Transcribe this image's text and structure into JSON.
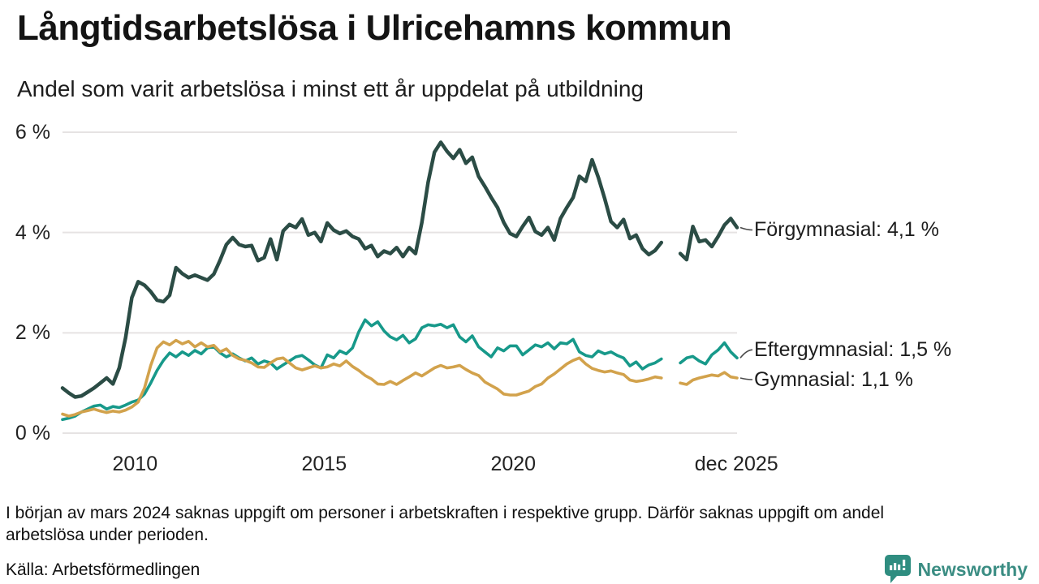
{
  "header": {
    "title": "Långtidsarbetslösa i Ulricehamns kommun",
    "subtitle": "Andel som varit arbetslösa i minst ett år uppdelat på utbildning"
  },
  "chart_data": {
    "type": "line",
    "title": "Långtidsarbetslösa i Ulricehamns kommun",
    "subtitle": "Andel som varit arbetslösa i minst ett år uppdelat på utbildning",
    "unit": "%",
    "grid": true,
    "legend_position": "right-end-labels",
    "xlim": [
      2008.0833,
      2025.9167
    ],
    "ylim": [
      0,
      6
    ],
    "x_start": 2008.0833,
    "x_step": 0.1666667,
    "x_ticks": [
      {
        "value": 2010,
        "label": "2010"
      },
      {
        "value": 2015,
        "label": "2015"
      },
      {
        "value": 2020,
        "label": "2020"
      },
      {
        "value": 2025.9,
        "label": "dec 2025"
      }
    ],
    "y_ticks": [
      {
        "value": 0,
        "label": "0 %"
      },
      {
        "value": 2,
        "label": "2 %"
      },
      {
        "value": 4,
        "label": "4 %"
      },
      {
        "value": 6,
        "label": "6 %"
      }
    ],
    "gap_period": "mars 2024",
    "grid_color": "#e6e3e3",
    "series": [
      {
        "name": "Förgymnasial",
        "color": "#2b4c45",
        "stroke_width": 4.5,
        "end_label": "Förgymnasial: 4,1 %",
        "end_value": 4.1,
        "values": [
          0.9,
          0.8,
          0.72,
          0.74,
          0.82,
          0.9,
          1.0,
          1.1,
          0.98,
          1.3,
          1.9,
          2.7,
          3.02,
          2.95,
          2.82,
          2.65,
          2.62,
          2.75,
          3.3,
          3.18,
          3.1,
          3.15,
          3.1,
          3.05,
          3.17,
          3.45,
          3.76,
          3.9,
          3.76,
          3.72,
          3.74,
          3.44,
          3.5,
          3.87,
          3.46,
          4.03,
          4.16,
          4.1,
          4.27,
          3.95,
          4.0,
          3.82,
          4.19,
          4.05,
          3.98,
          4.03,
          3.92,
          3.87,
          3.68,
          3.74,
          3.52,
          3.63,
          3.58,
          3.7,
          3.52,
          3.7,
          3.58,
          4.2,
          5.0,
          5.6,
          5.8,
          5.62,
          5.48,
          5.65,
          5.38,
          5.5,
          5.12,
          4.92,
          4.7,
          4.5,
          4.2,
          3.98,
          3.92,
          4.12,
          4.3,
          4.02,
          3.95,
          4.1,
          3.85,
          4.28,
          4.5,
          4.7,
          5.12,
          5.02,
          5.45,
          5.1,
          4.68,
          4.22,
          4.1,
          4.26,
          3.88,
          3.95,
          3.68,
          3.56,
          3.64,
          3.8,
          null,
          null,
          3.58,
          3.46,
          4.12,
          3.82,
          3.85,
          3.72,
          3.92,
          4.15,
          4.28,
          4.1
        ]
      },
      {
        "name": "Eftergymnasial",
        "color": "#17998a",
        "stroke_width": 3.6,
        "end_label": "Eftergymnasial: 1,5 %",
        "end_value": 1.5,
        "values": [
          0.27,
          0.3,
          0.34,
          0.42,
          0.48,
          0.54,
          0.56,
          0.48,
          0.53,
          0.51,
          0.56,
          0.62,
          0.66,
          0.78,
          1.0,
          1.25,
          1.45,
          1.6,
          1.52,
          1.62,
          1.55,
          1.65,
          1.58,
          1.7,
          1.72,
          1.6,
          1.52,
          1.58,
          1.5,
          1.44,
          1.5,
          1.38,
          1.44,
          1.4,
          1.28,
          1.36,
          1.44,
          1.52,
          1.55,
          1.46,
          1.36,
          1.3,
          1.56,
          1.5,
          1.64,
          1.58,
          1.7,
          2.02,
          2.26,
          2.14,
          2.22,
          2.04,
          1.92,
          1.86,
          1.95,
          1.8,
          1.88,
          2.1,
          2.16,
          2.14,
          2.17,
          2.1,
          2.16,
          1.92,
          1.82,
          1.94,
          1.72,
          1.62,
          1.52,
          1.7,
          1.64,
          1.74,
          1.74,
          1.56,
          1.66,
          1.76,
          1.72,
          1.8,
          1.68,
          1.8,
          1.78,
          1.87,
          1.62,
          1.55,
          1.52,
          1.64,
          1.58,
          1.62,
          1.55,
          1.5,
          1.34,
          1.42,
          1.28,
          1.36,
          1.4,
          1.48,
          null,
          null,
          1.4,
          1.5,
          1.53,
          1.44,
          1.38,
          1.56,
          1.66,
          1.8,
          1.62,
          1.5
        ]
      },
      {
        "name": "Gymnasial",
        "color": "#d2a24c",
        "stroke_width": 3.6,
        "end_label": "Gymnasial: 1,1 %",
        "end_value": 1.1,
        "values": [
          0.38,
          0.34,
          0.37,
          0.42,
          0.45,
          0.48,
          0.44,
          0.41,
          0.44,
          0.42,
          0.46,
          0.52,
          0.62,
          0.9,
          1.35,
          1.7,
          1.82,
          1.76,
          1.85,
          1.78,
          1.83,
          1.72,
          1.8,
          1.72,
          1.75,
          1.62,
          1.68,
          1.55,
          1.48,
          1.45,
          1.4,
          1.32,
          1.31,
          1.4,
          1.48,
          1.5,
          1.4,
          1.3,
          1.26,
          1.3,
          1.34,
          1.3,
          1.32,
          1.38,
          1.34,
          1.44,
          1.33,
          1.25,
          1.15,
          1.08,
          0.98,
          0.97,
          1.03,
          0.97,
          1.05,
          1.12,
          1.2,
          1.14,
          1.22,
          1.3,
          1.35,
          1.3,
          1.32,
          1.35,
          1.27,
          1.2,
          1.15,
          1.02,
          0.95,
          0.88,
          0.78,
          0.76,
          0.76,
          0.8,
          0.84,
          0.93,
          0.98,
          1.1,
          1.18,
          1.28,
          1.38,
          1.45,
          1.5,
          1.38,
          1.29,
          1.25,
          1.22,
          1.24,
          1.2,
          1.17,
          1.06,
          1.03,
          1.05,
          1.08,
          1.12,
          1.1,
          null,
          null,
          1.0,
          0.97,
          1.06,
          1.1,
          1.13,
          1.16,
          1.14,
          1.21,
          1.12,
          1.1
        ]
      }
    ]
  },
  "footer": {
    "note": "I början av mars 2024 saknas uppgift om personer i arbetskraften i respektive grupp. Därför saknas uppgift om andel arbetslösa under perioden.",
    "source": "Källa: Arbetsförmedlingen",
    "brand": "Newsworthy"
  }
}
